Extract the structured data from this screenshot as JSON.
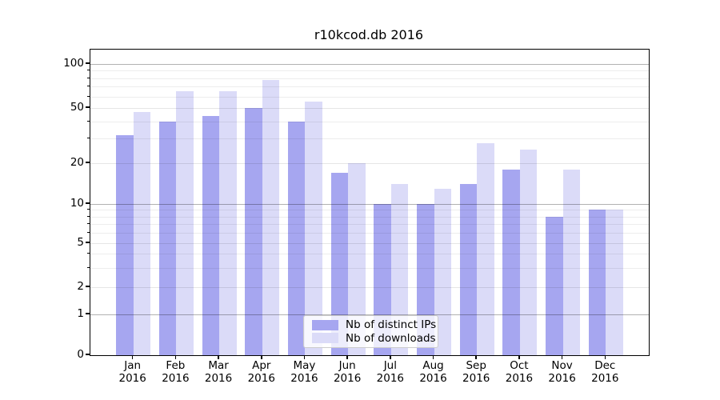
{
  "title": "r10kcod.db 2016",
  "legend": {
    "items": [
      {
        "label": "Nb of distinct IPs",
        "color": "#a6a6f0"
      },
      {
        "label": "Nb of downloads",
        "color": "#dbdbf8"
      }
    ]
  },
  "y_axis": {
    "tick_labels": [
      "100",
      "50",
      "20",
      "10",
      "5",
      "2",
      "1",
      "0"
    ]
  },
  "x_axis": {
    "months": [
      "Jan",
      "Feb",
      "Mar",
      "Apr",
      "May",
      "Jun",
      "Jul",
      "Aug",
      "Sep",
      "Oct",
      "Nov",
      "Dec"
    ],
    "year": "2016"
  },
  "chart_data": {
    "type": "bar",
    "title": "r10kcod.db 2016",
    "categories": [
      "Jan 2016",
      "Feb 2016",
      "Mar 2016",
      "Apr 2016",
      "May 2016",
      "Jun 2016",
      "Jul 2016",
      "Aug 2016",
      "Sep 2016",
      "Oct 2016",
      "Nov 2016",
      "Dec 2016"
    ],
    "series": [
      {
        "name": "Nb of distinct IPs",
        "color": "#a6a6f0",
        "values": [
          32,
          40,
          44,
          50,
          40,
          17,
          10,
          10,
          14,
          18,
          8,
          9
        ]
      },
      {
        "name": "Nb of downloads",
        "color": "#dbdbf8",
        "values": [
          47,
          65,
          65,
          78,
          55,
          20,
          14,
          13,
          28,
          25,
          18,
          9
        ]
      }
    ],
    "yscale": "symlog",
    "yticks": [
      100,
      50,
      20,
      10,
      5,
      2,
      1,
      0
    ],
    "major_gridlines": [
      1,
      10,
      100
    ],
    "sub_gridlines": [
      2,
      5,
      20,
      50
    ],
    "minor_gridlines": [
      3,
      4,
      6,
      7,
      8,
      9,
      30,
      40,
      60,
      70,
      80,
      90
    ],
    "ylim": [
      0,
      120
    ],
    "grid": true,
    "legend_position": "inside lower-center"
  }
}
